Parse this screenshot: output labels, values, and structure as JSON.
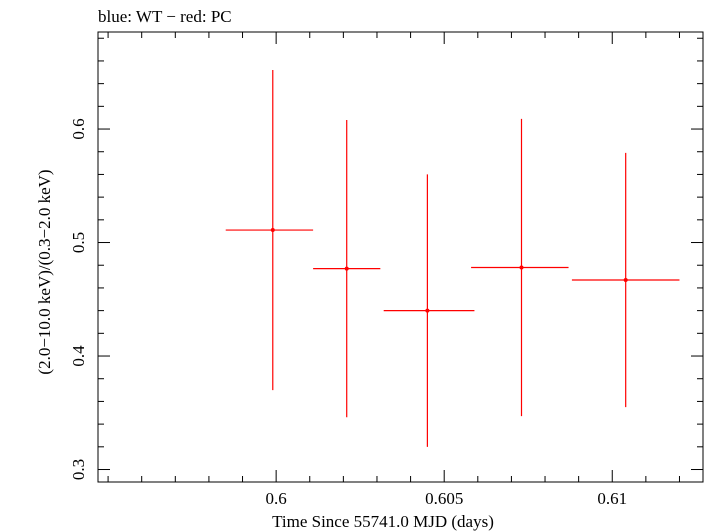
{
  "chart_data": {
    "type": "scatter",
    "title": "blue: WT − red: PC",
    "xlabel": "Time Since 55741.0 MJD (days)",
    "ylabel": "(2.0−10.0 keV)/(0.3−2.0 keV)",
    "xlim": [
      0.5947,
      0.6127
    ],
    "ylim": [
      0.289,
      0.6855
    ],
    "x_major_ticks": [
      0.6,
      0.605,
      0.61
    ],
    "x_tick_labels": [
      "0.6",
      "0.605",
      "0.61"
    ],
    "x_minor_step": 0.001,
    "y_major_ticks": [
      0.3,
      0.4,
      0.5,
      0.6
    ],
    "y_tick_labels": [
      "0.3",
      "0.4",
      "0.5",
      "0.6"
    ],
    "y_minor_step": 0.02,
    "grid": false,
    "series": [
      {
        "color": "#ff0000",
        "points": [
          {
            "x": 0.5999,
            "y": 0.511,
            "xerr_low": 0.0014,
            "xerr_high": 0.0012,
            "yerr_low": 0.141,
            "yerr_high": 0.141
          },
          {
            "x": 0.6021,
            "y": 0.477,
            "xerr_low": 0.001,
            "xerr_high": 0.001,
            "yerr_low": 0.131,
            "yerr_high": 0.131
          },
          {
            "x": 0.6045,
            "y": 0.44,
            "xerr_low": 0.0013,
            "xerr_high": 0.0014,
            "yerr_low": 0.12,
            "yerr_high": 0.12
          },
          {
            "x": 0.6073,
            "y": 0.478,
            "xerr_low": 0.0015,
            "xerr_high": 0.0014,
            "yerr_low": 0.131,
            "yerr_high": 0.131
          },
          {
            "x": 0.6104,
            "y": 0.467,
            "xerr_low": 0.0016,
            "xerr_high": 0.0016,
            "yerr_low": 0.112,
            "yerr_high": 0.112
          }
        ]
      }
    ]
  }
}
